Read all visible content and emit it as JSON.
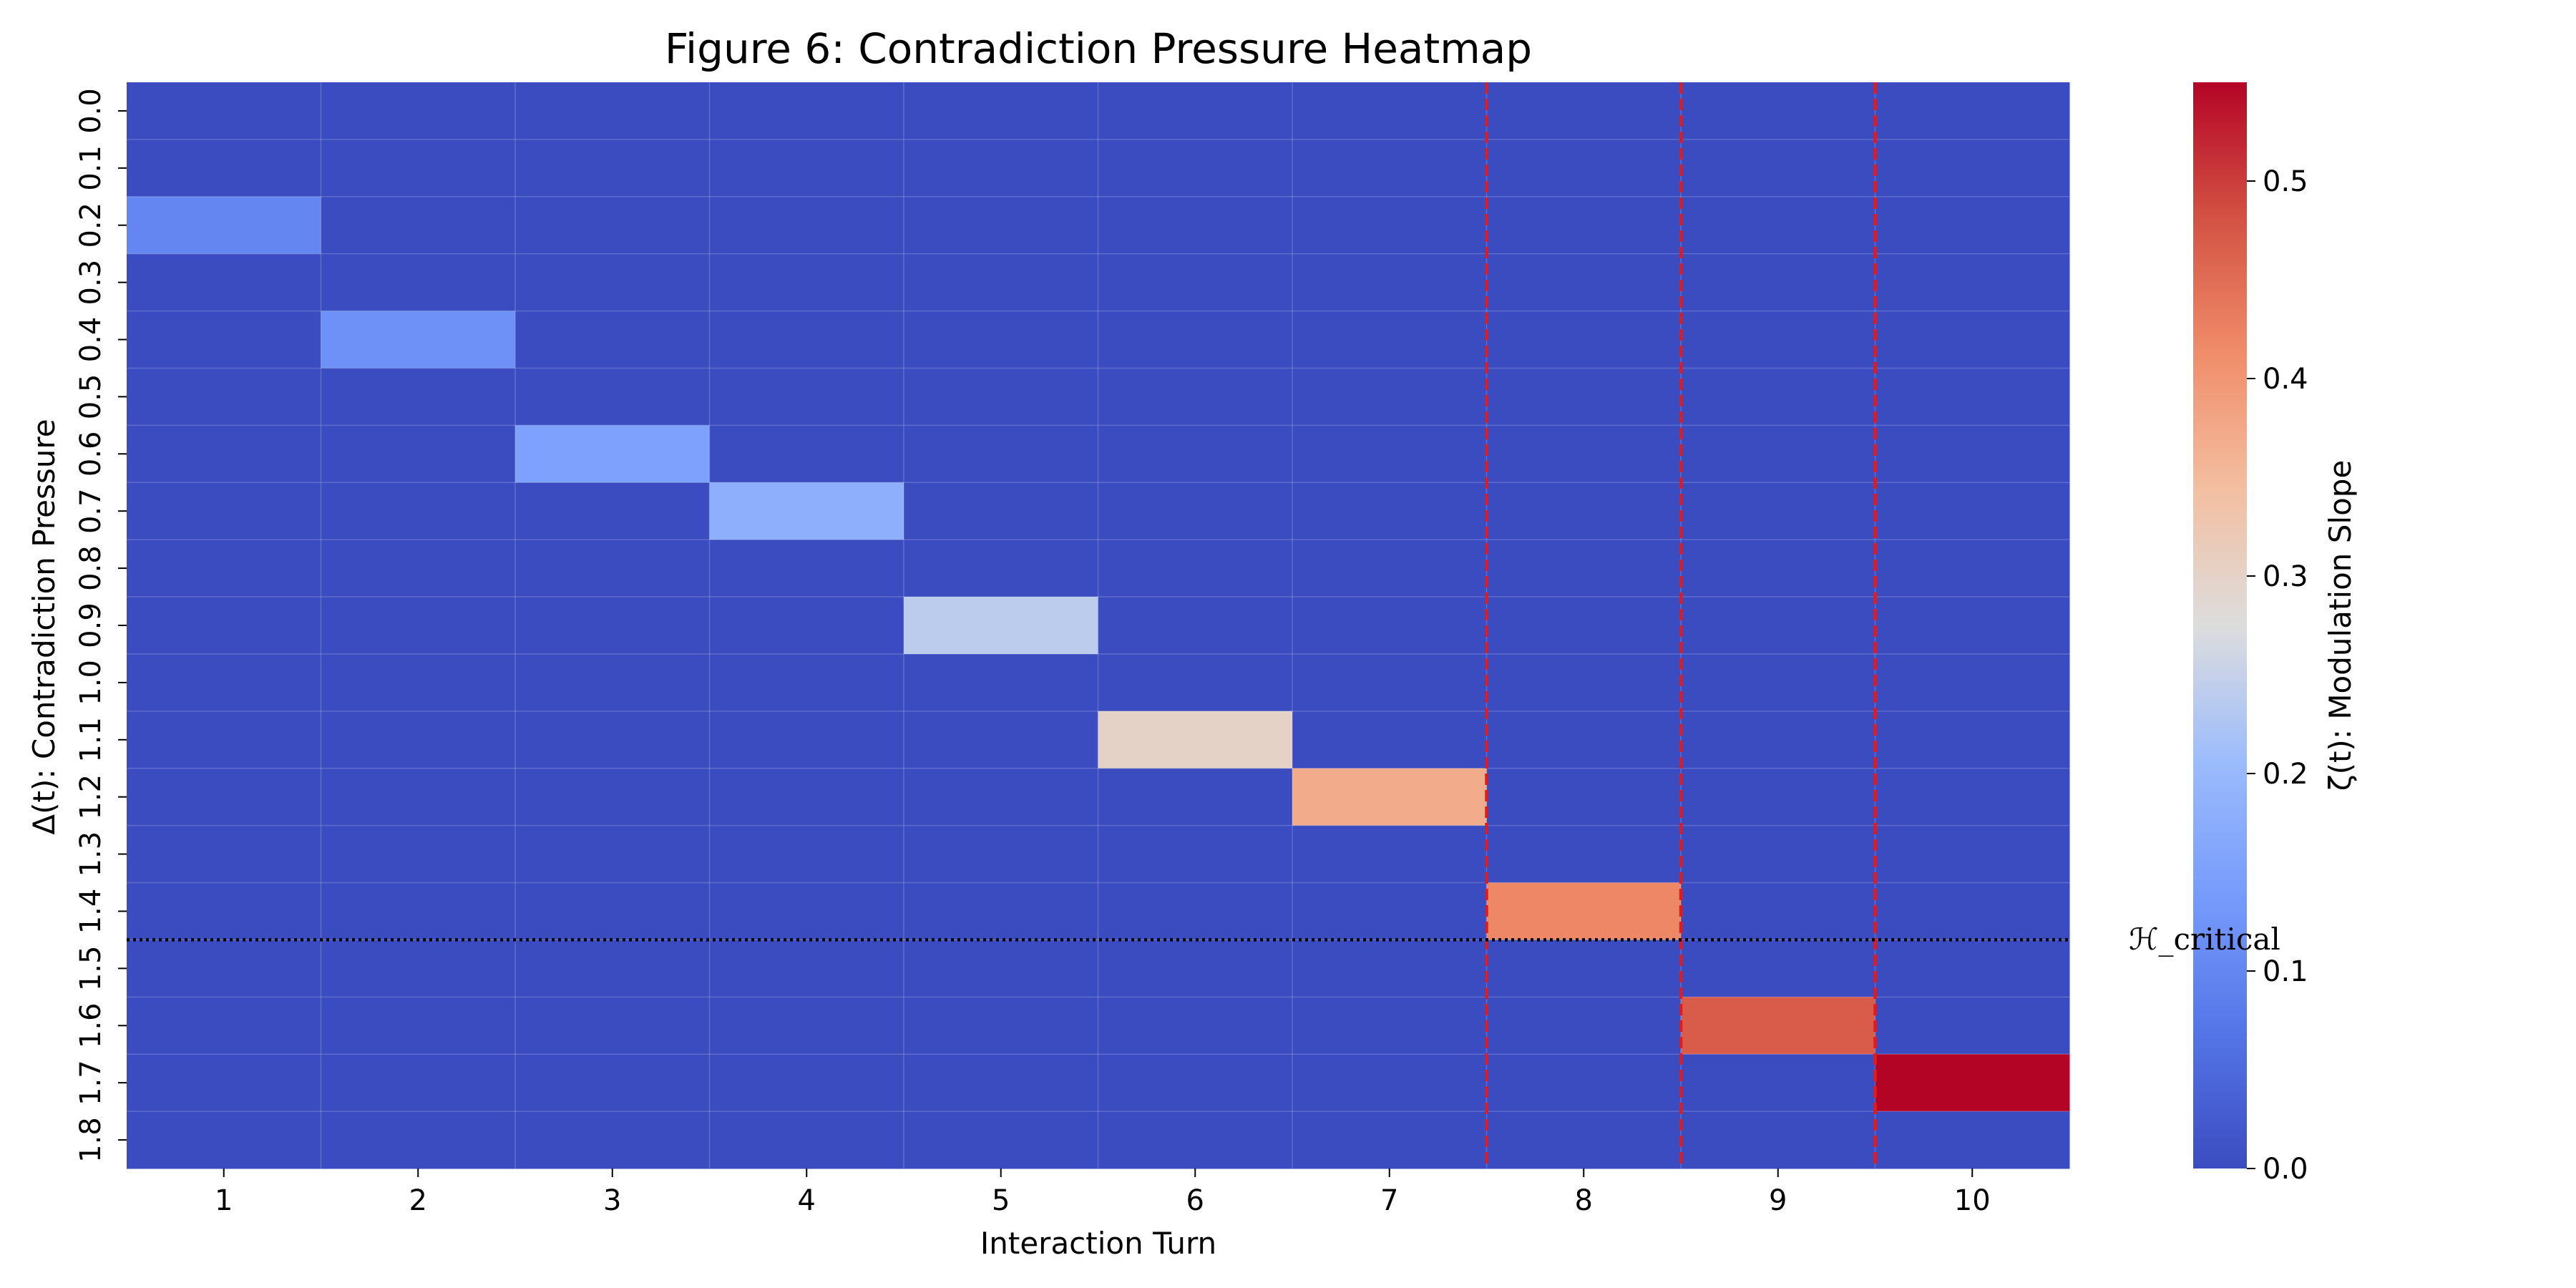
{
  "chart_data": {
    "type": "heatmap",
    "title": "Figure 6: Contradiction Pressure Heatmap",
    "xlabel": "Interaction Turn",
    "ylabel": "Δ(t): Contradiction Pressure",
    "x_categories": [
      "1",
      "2",
      "3",
      "4",
      "5",
      "6",
      "7",
      "8",
      "9",
      "10"
    ],
    "y_categories": [
      "0.0",
      "0.1",
      "0.2",
      "0.3",
      "0.4",
      "0.5",
      "0.6",
      "0.7",
      "0.8",
      "0.9",
      "1.0",
      "1.1",
      "1.2",
      "1.3",
      "1.4",
      "1.5",
      "1.6",
      "1.7",
      "1.8"
    ],
    "colormap": "coolwarm",
    "value_range": [
      0.0,
      0.55
    ],
    "cells": [
      {
        "x": "1",
        "y": "0.2",
        "value": 0.1
      },
      {
        "x": "2",
        "y": "0.4",
        "value": 0.12
      },
      {
        "x": "3",
        "y": "0.6",
        "value": 0.15
      },
      {
        "x": "4",
        "y": "0.7",
        "value": 0.18
      },
      {
        "x": "5",
        "y": "0.9",
        "value": 0.24
      },
      {
        "x": "6",
        "y": "1.1",
        "value": 0.3
      },
      {
        "x": "7",
        "y": "1.2",
        "value": 0.37
      },
      {
        "x": "8",
        "y": "1.4",
        "value": 0.42
      },
      {
        "x": "9",
        "y": "1.6",
        "value": 0.47
      },
      {
        "x": "10",
        "y": "1.7",
        "value": 0.55
      }
    ],
    "vertical_markers": {
      "between_turns": [
        [
          7,
          8
        ],
        [
          8,
          9
        ],
        [
          9,
          10
        ]
      ],
      "color": "#e31a1c",
      "style": "dashed"
    },
    "horizontal_marker": {
      "between_rows": [
        "1.4",
        "1.5"
      ],
      "label": "ℋ_critical",
      "style": "dotted",
      "color": "#000000"
    },
    "colorbar": {
      "label": "ζ(t): Modulation Slope",
      "ticks": [
        "0.0",
        "0.1",
        "0.2",
        "0.3",
        "0.4",
        "0.5"
      ],
      "min": 0.0,
      "max": 0.55
    },
    "grid": true
  }
}
